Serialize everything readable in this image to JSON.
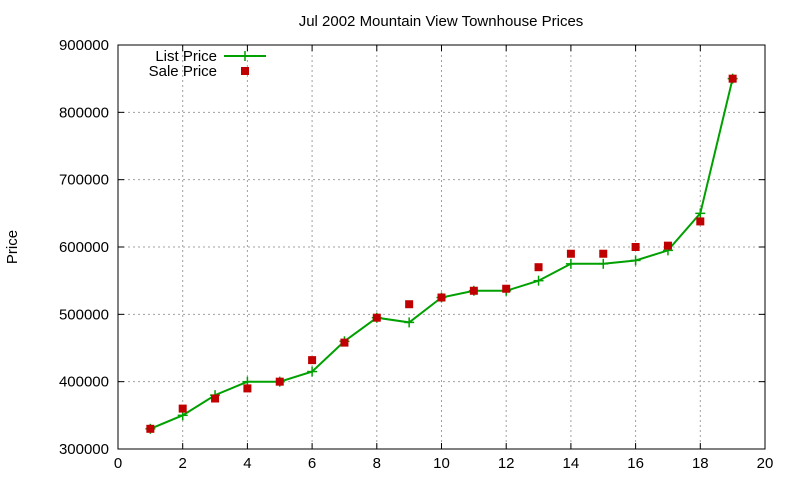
{
  "chart_data": {
    "type": "line",
    "title": "Jul 2002 Mountain View Townhouse Prices",
    "xlabel": "",
    "ylabel": "Price",
    "xlim": [
      0,
      20
    ],
    "ylim": [
      300000,
      900000
    ],
    "x_ticks": [
      0,
      2,
      4,
      6,
      8,
      10,
      12,
      14,
      16,
      18,
      20
    ],
    "y_ticks": [
      300000,
      400000,
      500000,
      600000,
      700000,
      800000,
      900000
    ],
    "grid": true,
    "legend_position": "top-left",
    "series": [
      {
        "name": "List Price",
        "style": "line+cross",
        "color": "#00a000",
        "x": [
          1,
          2,
          3,
          4,
          5,
          6,
          7,
          8,
          9,
          10,
          11,
          12,
          13,
          14,
          15,
          16,
          17,
          18,
          19
        ],
        "y": [
          330000,
          350000,
          380000,
          400000,
          400000,
          415000,
          460000,
          495000,
          488000,
          525000,
          535000,
          535000,
          550000,
          575000,
          575000,
          580000,
          595000,
          650000,
          850000
        ]
      },
      {
        "name": "Sale Price",
        "style": "square",
        "color": "#c00000",
        "x": [
          1,
          2,
          3,
          4,
          5,
          6,
          7,
          8,
          9,
          10,
          11,
          12,
          13,
          14,
          15,
          16,
          17,
          18,
          19
        ],
        "y": [
          330000,
          360000,
          375000,
          390000,
          400000,
          432000,
          458000,
          495000,
          515000,
          525000,
          535000,
          538000,
          570000,
          590000,
          590000,
          600000,
          602000,
          638000,
          850000
        ]
      }
    ]
  }
}
